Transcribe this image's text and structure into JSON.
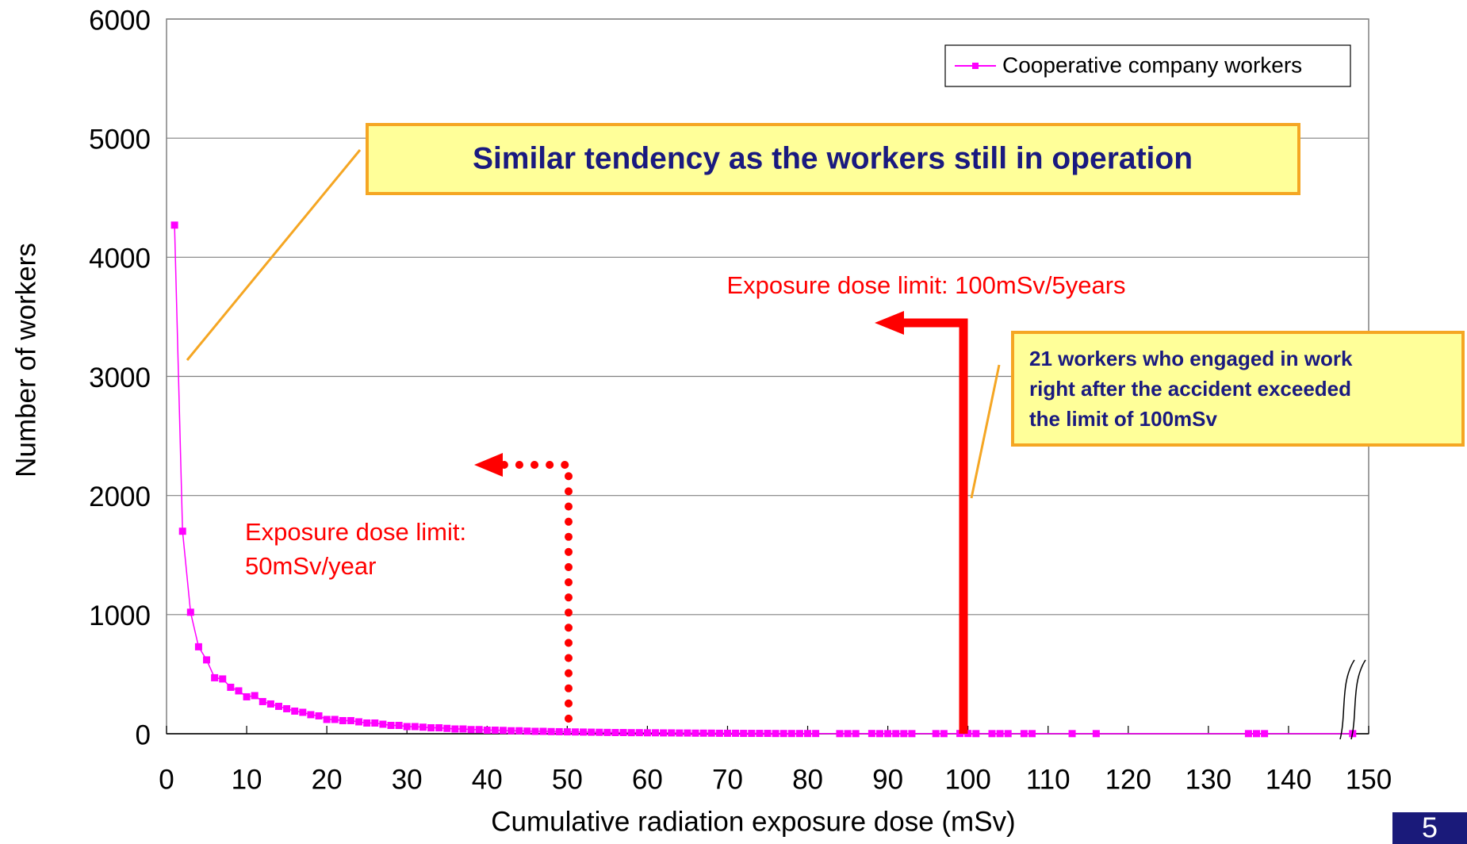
{
  "chart_data": {
    "type": "line",
    "x_label": "Cumulative radiation exposure dose (mSv)",
    "y_label": "Number of workers",
    "x": [
      1,
      2,
      3,
      4,
      5,
      6,
      7,
      8,
      9,
      10,
      11,
      12,
      13,
      14,
      15,
      16,
      17,
      18,
      19,
      20,
      21,
      22,
      23,
      24,
      25,
      26,
      27,
      28,
      29,
      30,
      31,
      32,
      33,
      34,
      35,
      36,
      37,
      38,
      39,
      40,
      41,
      42,
      43,
      44,
      45,
      46,
      47,
      48,
      49,
      50,
      51,
      52,
      53,
      54,
      55,
      56,
      57,
      58,
      59,
      60,
      61,
      62,
      63,
      64,
      65,
      66,
      67,
      68,
      69,
      70,
      71,
      72,
      73,
      74,
      75,
      76,
      77,
      78,
      79,
      80,
      81,
      84,
      85,
      86,
      88,
      89,
      90,
      91,
      92,
      93,
      96,
      97,
      99,
      100,
      101,
      103,
      104,
      105,
      107,
      108,
      113,
      116,
      135,
      136,
      137,
      148
    ],
    "series": [
      {
        "name": "Cooperative company workers",
        "color": "#ff00ff",
        "values": [
          4270,
          1700,
          1020,
          730,
          620,
          470,
          460,
          390,
          360,
          310,
          320,
          270,
          250,
          230,
          210,
          190,
          180,
          160,
          150,
          120,
          120,
          110,
          110,
          100,
          90,
          90,
          80,
          70,
          70,
          60,
          60,
          55,
          50,
          50,
          45,
          40,
          40,
          35,
          35,
          30,
          30,
          28,
          25,
          25,
          22,
          20,
          20,
          18,
          17,
          16,
          15,
          14,
          13,
          12,
          11,
          10,
          10,
          9,
          9,
          8,
          8,
          7,
          7,
          6,
          6,
          5,
          5,
          5,
          4,
          4,
          4,
          3,
          3,
          3,
          3,
          2,
          2,
          2,
          2,
          2,
          2,
          1,
          1,
          1,
          2,
          1,
          1,
          1,
          1,
          1,
          1,
          1,
          2,
          2,
          1,
          1,
          1,
          1,
          1,
          1,
          1,
          1,
          1,
          1,
          1,
          1
        ]
      }
    ],
    "xlim": [
      0,
      150
    ],
    "ylim": [
      0,
      6000
    ],
    "xticks": [
      0,
      10,
      20,
      30,
      40,
      50,
      60,
      70,
      80,
      90,
      100,
      110,
      120,
      130,
      140,
      150
    ],
    "yticks": [
      0,
      1000,
      2000,
      3000,
      4000,
      5000,
      6000
    ],
    "grid": true,
    "legend": "upper right",
    "annotations": {
      "tendency": "Similar tendency as the workers still in operation",
      "limit_5years": "Exposure dose limit: 100mSv/5years",
      "limit_year": [
        "Exposure dose limit:",
        "50mSv/year"
      ],
      "exceeded": [
        "21 workers who engaged in work",
        "right after the accident exceeded",
        "the limit of 100mSv"
      ]
    }
  },
  "page_number": "5"
}
